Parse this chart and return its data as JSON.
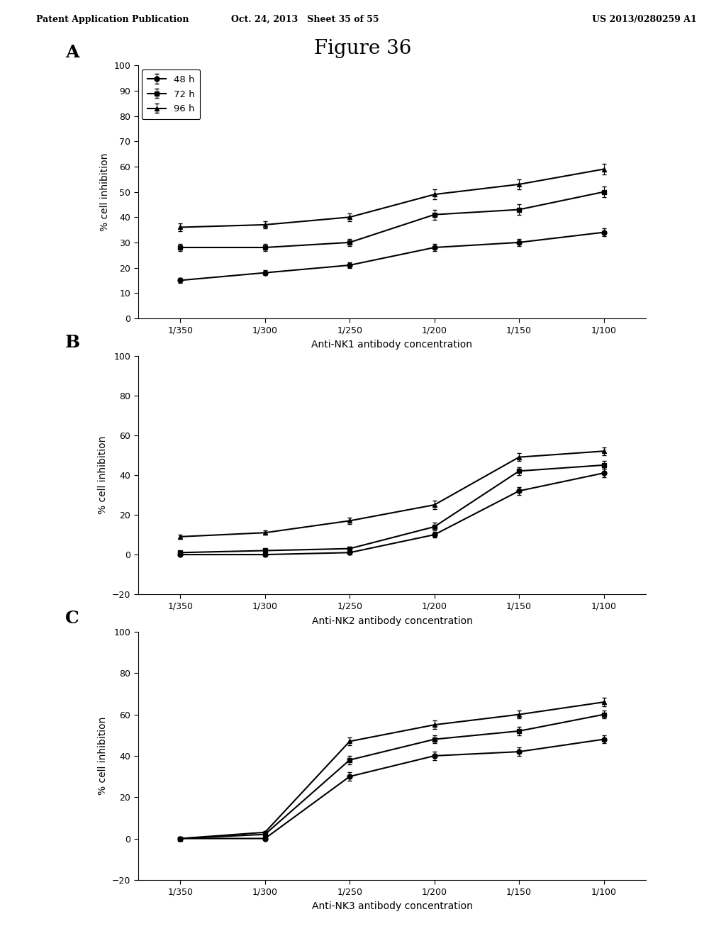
{
  "figure_title": "Figure 36",
  "header_left": "Patent Application Publication",
  "header_center": "Oct. 24, 2013   Sheet 35 of 55",
  "header_right": "US 2013/0280259 A1",
  "x_labels": [
    "1/350",
    "1/300",
    "1/250",
    "1/200",
    "1/150",
    "1/100"
  ],
  "x_positions": [
    0,
    1,
    2,
    3,
    4,
    5
  ],
  "legend_labels": [
    "48 h",
    "72 h",
    "96 h"
  ],
  "panelA": {
    "label": "A",
    "xlabel": "Anti-NK1 antibody concentration",
    "ylabel": "% cell inhibition",
    "ylim": [
      0,
      100
    ],
    "yticks": [
      0,
      10,
      20,
      30,
      40,
      50,
      60,
      70,
      80,
      90,
      100
    ],
    "series": {
      "48h": [
        15,
        18,
        21,
        28,
        30,
        34
      ],
      "72h": [
        28,
        28,
        30,
        41,
        43,
        50
      ],
      "96h": [
        36,
        37,
        40,
        49,
        53,
        59
      ]
    },
    "errorbars": {
      "48h": [
        1.0,
        1.0,
        1.0,
        1.5,
        1.5,
        1.5
      ],
      "72h": [
        1.5,
        1.5,
        1.5,
        2.0,
        2.0,
        2.0
      ],
      "96h": [
        1.5,
        1.5,
        1.5,
        2.0,
        2.0,
        2.0
      ]
    }
  },
  "panelB": {
    "label": "B",
    "xlabel": "Anti-NK2 antibody concentration",
    "ylabel": "% cell inhibition",
    "ylim": [
      -20,
      100
    ],
    "yticks": [
      -20,
      0,
      20,
      40,
      60,
      80,
      100
    ],
    "series": {
      "48h": [
        0,
        0,
        1,
        10,
        32,
        41
      ],
      "72h": [
        1,
        2,
        3,
        14,
        42,
        45
      ],
      "96h": [
        9,
        11,
        17,
        25,
        49,
        52
      ]
    },
    "errorbars": {
      "48h": [
        0.5,
        0.5,
        1.0,
        1.5,
        2.0,
        2.0
      ],
      "72h": [
        0.5,
        0.5,
        1.0,
        2.0,
        2.0,
        2.0
      ],
      "96h": [
        1.0,
        1.0,
        1.5,
        2.0,
        2.0,
        2.0
      ]
    }
  },
  "panelC": {
    "label": "C",
    "xlabel": "Anti-NK3 antibody concentration",
    "ylabel": "% cell inhibition",
    "ylim": [
      -20,
      100
    ],
    "yticks": [
      -20,
      0,
      20,
      40,
      60,
      80,
      100
    ],
    "series": {
      "48h": [
        0,
        0,
        30,
        40,
        42,
        48
      ],
      "72h": [
        0,
        2,
        38,
        48,
        52,
        60
      ],
      "96h": [
        0,
        3,
        47,
        55,
        60,
        66
      ]
    },
    "errorbars": {
      "48h": [
        0.5,
        0.5,
        2.0,
        2.0,
        2.0,
        2.0
      ],
      "72h": [
        0.5,
        0.5,
        2.0,
        2.0,
        2.0,
        2.0
      ],
      "96h": [
        0.5,
        0.5,
        2.0,
        2.0,
        2.0,
        2.0
      ]
    }
  },
  "line_color": "#000000",
  "marker_48h": "o",
  "marker_72h": "s",
  "marker_96h": "^",
  "markersize": 5,
  "linewidth": 1.5,
  "background_color": "#ffffff",
  "header_fontsize": 9,
  "title_fontsize": 20,
  "panel_label_fontsize": 18,
  "axis_fontsize": 10,
  "tick_fontsize": 9
}
